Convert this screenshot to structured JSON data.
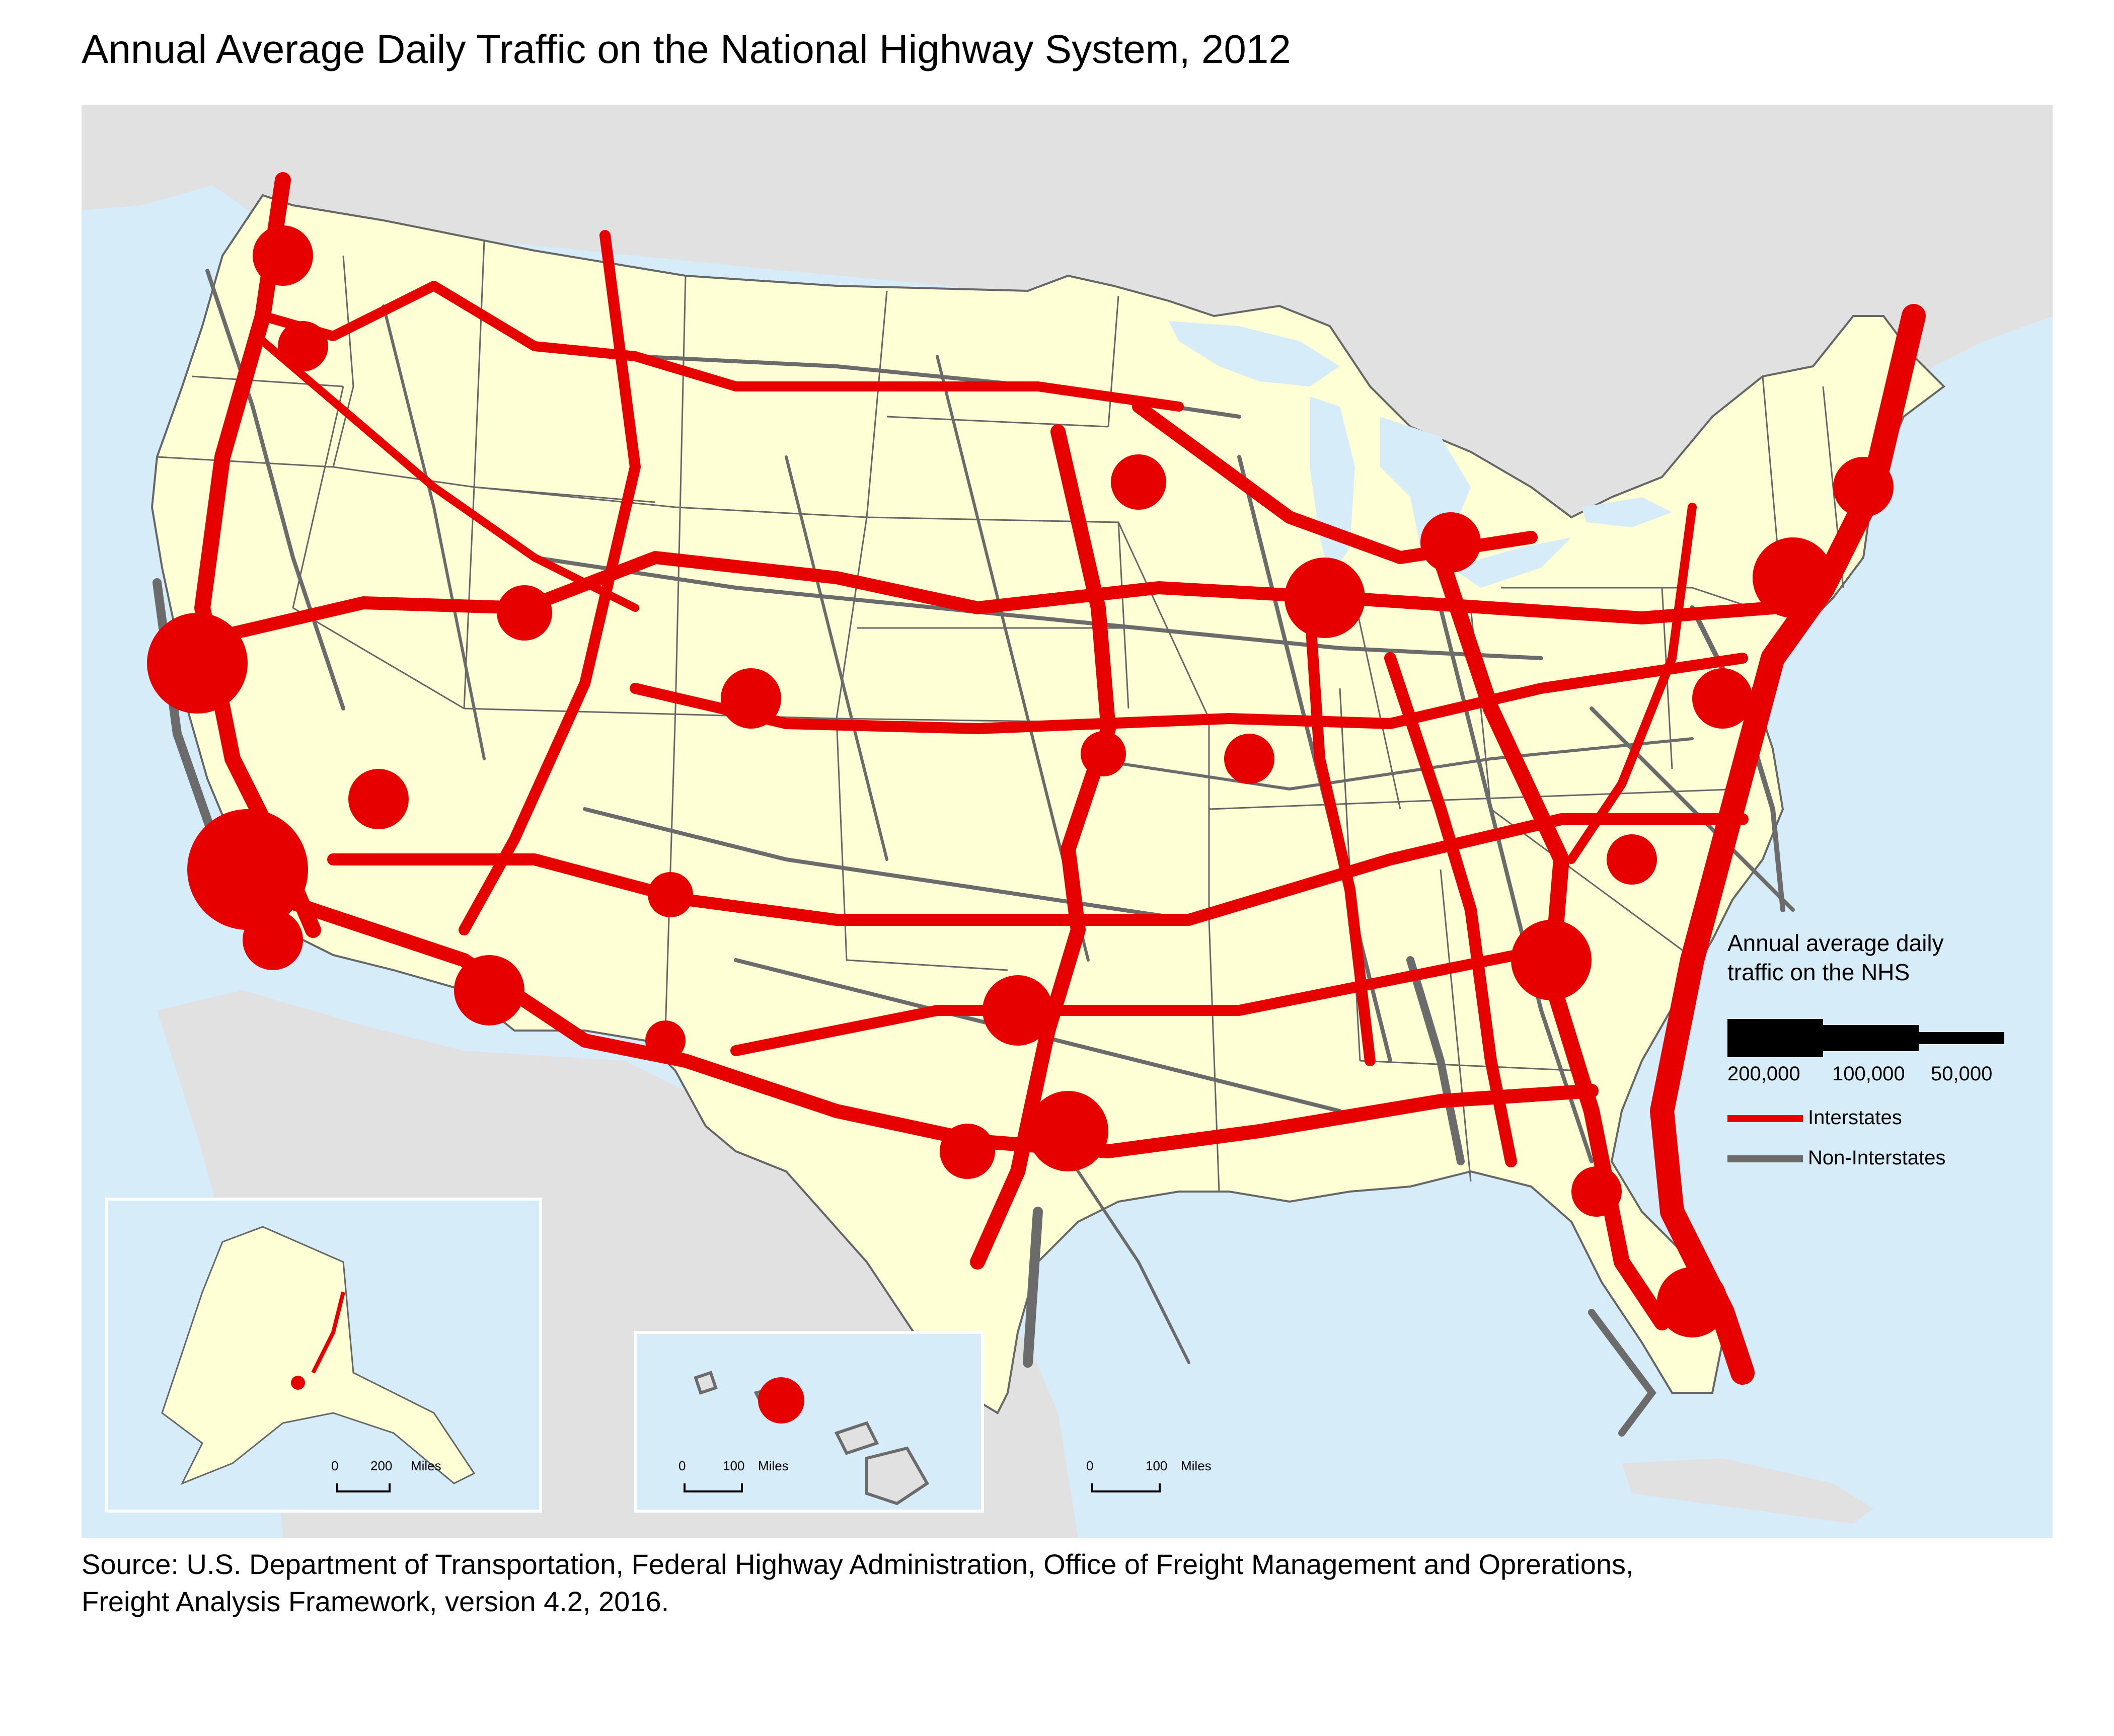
{
  "title": "Annual Average Daily Traffic on the National Highway System, 2012",
  "colors": {
    "ocean": "#d6ecf8",
    "land_us": "#ffffd6",
    "land_other": "#e1e1e1",
    "interstate": "#e60000",
    "non_interstate": "#6b6b6b",
    "state_border": "#666666",
    "inset_border": "#ffffff"
  },
  "legend": {
    "title_line1": "Annual average daily",
    "title_line2": "traffic on the NHS",
    "width_ticks": [
      "200,000",
      "100,000",
      "50,000"
    ],
    "interstates_label": "Interstates",
    "non_interstates_label": "Non-Interstates"
  },
  "scale_bars": {
    "alaska": {
      "zero": "0",
      "distance": "200",
      "unit": "Miles"
    },
    "hawaii": {
      "zero": "0",
      "distance": "100",
      "unit": "Miles"
    },
    "conus": {
      "zero": "0",
      "distance": "100",
      "unit": "Miles"
    }
  },
  "source_line1": "Source: U.S. Department of Transportation, Federal Highway Administration, Office of Freight Management and Oprerations,",
  "source_line2": "Freight Analysis Framework, version 4.2, 2016."
}
